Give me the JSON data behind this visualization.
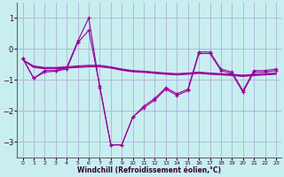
{
  "xlabel": "Windchill (Refroidissement éolien,°C)",
  "xlim": [
    -0.5,
    23.5
  ],
  "ylim": [
    -3.5,
    1.5
  ],
  "yticks": [
    -3,
    -2,
    -1,
    0,
    1
  ],
  "xticks": [
    0,
    1,
    2,
    3,
    4,
    5,
    6,
    7,
    8,
    9,
    10,
    11,
    12,
    13,
    14,
    15,
    16,
    17,
    18,
    19,
    20,
    21,
    22,
    23
  ],
  "background_color": "#c8eef0",
  "grid_color": "#b0b0d8",
  "line_color": "#990099",
  "series_main": {
    "x": [
      0,
      1,
      2,
      3,
      4,
      5,
      6,
      7,
      8,
      9,
      10,
      11,
      12,
      13,
      14,
      15,
      16,
      17,
      18,
      19,
      20,
      21,
      22,
      23
    ],
    "y": [
      -0.3,
      -0.95,
      -0.7,
      -0.7,
      -0.6,
      0.25,
      1.0,
      -1.25,
      -3.1,
      -3.1,
      -2.2,
      -1.9,
      -1.65,
      -1.3,
      -1.5,
      -1.35,
      -0.15,
      -0.15,
      -0.7,
      -0.8,
      -1.4,
      -0.75,
      -0.75,
      -0.7
    ]
  },
  "series_flat": [
    {
      "x": [
        0,
        1,
        2,
        3,
        4,
        5,
        6,
        7,
        8,
        9,
        10,
        11,
        12,
        13,
        14,
        15,
        16,
        17,
        18,
        19,
        20,
        21,
        22,
        23
      ],
      "y": [
        -0.35,
        -0.55,
        -0.6,
        -0.6,
        -0.58,
        -0.55,
        -0.53,
        -0.53,
        -0.58,
        -0.65,
        -0.7,
        -0.72,
        -0.75,
        -0.78,
        -0.8,
        -0.78,
        -0.75,
        -0.78,
        -0.8,
        -0.82,
        -0.85,
        -0.82,
        -0.8,
        -0.78
      ]
    },
    {
      "x": [
        0,
        1,
        2,
        3,
        4,
        5,
        6,
        7,
        8,
        9,
        10,
        11,
        12,
        13,
        14,
        15,
        16,
        17,
        18,
        19,
        20,
        21,
        22,
        23
      ],
      "y": [
        -0.35,
        -0.58,
        -0.62,
        -0.62,
        -0.6,
        -0.58,
        -0.56,
        -0.56,
        -0.6,
        -0.67,
        -0.72,
        -0.74,
        -0.77,
        -0.8,
        -0.82,
        -0.8,
        -0.77,
        -0.8,
        -0.82,
        -0.84,
        -0.87,
        -0.84,
        -0.82,
        -0.8
      ]
    },
    {
      "x": [
        0,
        1,
        2,
        3,
        4,
        5,
        6,
        7,
        8,
        9,
        10,
        11,
        12,
        13,
        14,
        15,
        16,
        17,
        18,
        19,
        20,
        21,
        22,
        23
      ],
      "y": [
        -0.35,
        -0.6,
        -0.64,
        -0.64,
        -0.62,
        -0.6,
        -0.58,
        -0.58,
        -0.62,
        -0.69,
        -0.74,
        -0.76,
        -0.79,
        -0.82,
        -0.84,
        -0.82,
        -0.79,
        -0.82,
        -0.84,
        -0.86,
        -0.89,
        -0.86,
        -0.84,
        -0.82
      ]
    }
  ],
  "series_secondary": {
    "x": [
      0,
      1,
      2,
      3,
      4,
      5,
      6,
      7,
      8,
      9,
      10,
      11,
      12,
      13,
      14,
      15,
      16,
      17,
      18,
      19,
      20,
      21,
      22,
      23
    ],
    "y": [
      -0.3,
      -0.95,
      -0.75,
      -0.72,
      -0.65,
      0.2,
      0.6,
      -1.2,
      -3.1,
      -3.1,
      -2.2,
      -1.85,
      -1.6,
      -1.25,
      -1.45,
      -1.3,
      -0.1,
      -0.1,
      -0.65,
      -0.75,
      -1.35,
      -0.7,
      -0.7,
      -0.65
    ]
  }
}
